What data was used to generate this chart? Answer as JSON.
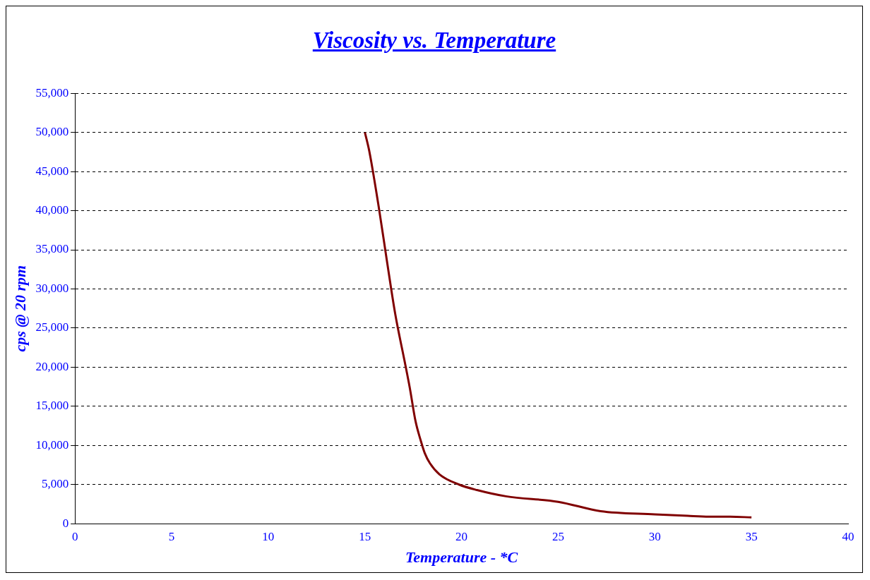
{
  "chart_data": {
    "type": "line",
    "title": "Viscosity vs. Temperature",
    "xlabel": "Temperature - *C",
    "ylabel": "cps @ 20 rpm",
    "series": [
      {
        "color": "#800000",
        "x": [
          15,
          15.22,
          15.74,
          16.12,
          16.57,
          17.06,
          17.32,
          17.62,
          17.88,
          18.1,
          18.37,
          18.86,
          19.87,
          20.8,
          22.3,
          25,
          27.2,
          30,
          31.7,
          32.8,
          33.9,
          35
        ],
        "values": [
          50000,
          47700,
          40100,
          33900,
          26800,
          20700,
          17400,
          13100,
          10700,
          9000,
          7700,
          6300,
          5000,
          4300,
          3500,
          2800,
          1600,
          1200,
          1000,
          900,
          900,
          800
        ]
      }
    ],
    "xlim": [
      0,
      40
    ],
    "xticks": [
      0,
      5,
      10,
      15,
      20,
      25,
      30,
      35,
      40
    ],
    "ylim": [
      0,
      55000
    ],
    "yticks": [
      0,
      {
        "value": 5000,
        "label": "5,000"
      },
      {
        "value": 10000,
        "label": "10,000"
      },
      {
        "value": 15000,
        "label": "15,000"
      },
      {
        "value": 20000,
        "label": "20,000"
      },
      {
        "value": 25000,
        "label": "25,000"
      },
      {
        "value": 30000,
        "label": "30,000"
      },
      {
        "value": 35000,
        "label": "35,000"
      },
      {
        "value": 40000,
        "label": "40,000"
      },
      {
        "value": 45000,
        "label": "45,000"
      },
      {
        "value": 50000,
        "label": "50,000"
      },
      {
        "value": 55000,
        "label": "55,000"
      }
    ],
    "grid": "y",
    "legend": false,
    "marker": "none",
    "line_style": "solid"
  }
}
